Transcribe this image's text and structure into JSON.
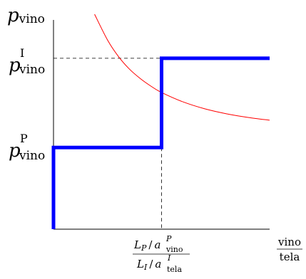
{
  "chart_data": {
    "type": "line",
    "x_domain": [
      0,
      1
    ],
    "y_domain": [
      0,
      1
    ],
    "x_tick": 0.5,
    "y_ticks": {
      "p_vino_P": 0.38,
      "p_vino_I": 0.795
    },
    "supply_step": {
      "x_break": 0.5,
      "points": [
        [
          0,
          0
        ],
        [
          0,
          0.38
        ],
        [
          0.5,
          0.38
        ],
        [
          0.5,
          0.795
        ],
        [
          1,
          0.795
        ]
      ],
      "color": "#0000ff"
    },
    "demand_curve": {
      "color": "#ff0000",
      "x": [
        0.19,
        0.25,
        0.3,
        0.35,
        0.4,
        0.45,
        0.5,
        0.6,
        0.7,
        0.8,
        0.9,
        1.0
      ],
      "y": [
        1.0,
        0.88,
        0.804,
        0.746,
        0.702,
        0.666,
        0.636,
        0.592,
        0.56,
        0.537,
        0.52,
        0.507
      ]
    },
    "dashed_guides": true,
    "labels": {
      "ylabel": {
        "var": "p",
        "sub": "vino"
      },
      "tick_upper": {
        "var": "p",
        "sup": "I",
        "sub": "vino"
      },
      "tick_lower": {
        "var": "p",
        "sup": "P",
        "sub": "vino"
      },
      "x_tick": {
        "num_var": "L",
        "num_var_sub": "P",
        "num_mid": "/",
        "num_den": "a",
        "num_den_sup": "P",
        "num_den_sub": "vino",
        "den_var": "L",
        "den_var_sub": "I",
        "den_mid": "/",
        "den_den": "a",
        "den_den_sup": "I",
        "den_den_sub": "tela"
      },
      "x_axis": {
        "num": "vino",
        "den": "tela"
      }
    }
  }
}
